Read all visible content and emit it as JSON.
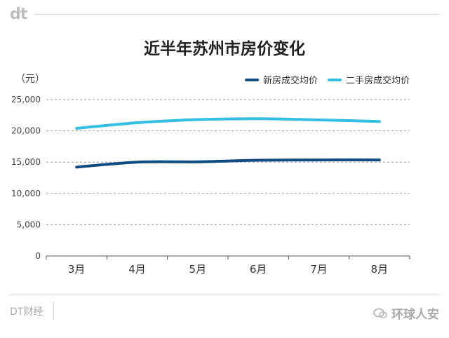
{
  "header": {
    "logo": "dt"
  },
  "footer": {
    "source": "DT财经",
    "watermark": "环球人安"
  },
  "chart_data": {
    "type": "line",
    "title": "近半年苏州市房价变化",
    "ylabel": "（元）",
    "xlabel": "",
    "categories": [
      "3月",
      "4月",
      "5月",
      "6月",
      "7月",
      "8月"
    ],
    "yticks": [
      0,
      5000,
      10000,
      15000,
      20000,
      25000
    ],
    "ytick_labels": [
      "0",
      "5,000",
      "10,000",
      "15,000",
      "20,000",
      "25,000"
    ],
    "ylim": [
      0,
      25000
    ],
    "grid": true,
    "legend_position": "top-right",
    "series": [
      {
        "name": "新房成交均价",
        "color": "#0f4c81",
        "values": [
          14200,
          15000,
          15050,
          15300,
          15350,
          15350
        ]
      },
      {
        "name": "二手房成交均价",
        "color": "#33bfe3",
        "values": [
          20400,
          21300,
          21800,
          21950,
          21750,
          21500
        ]
      }
    ]
  }
}
